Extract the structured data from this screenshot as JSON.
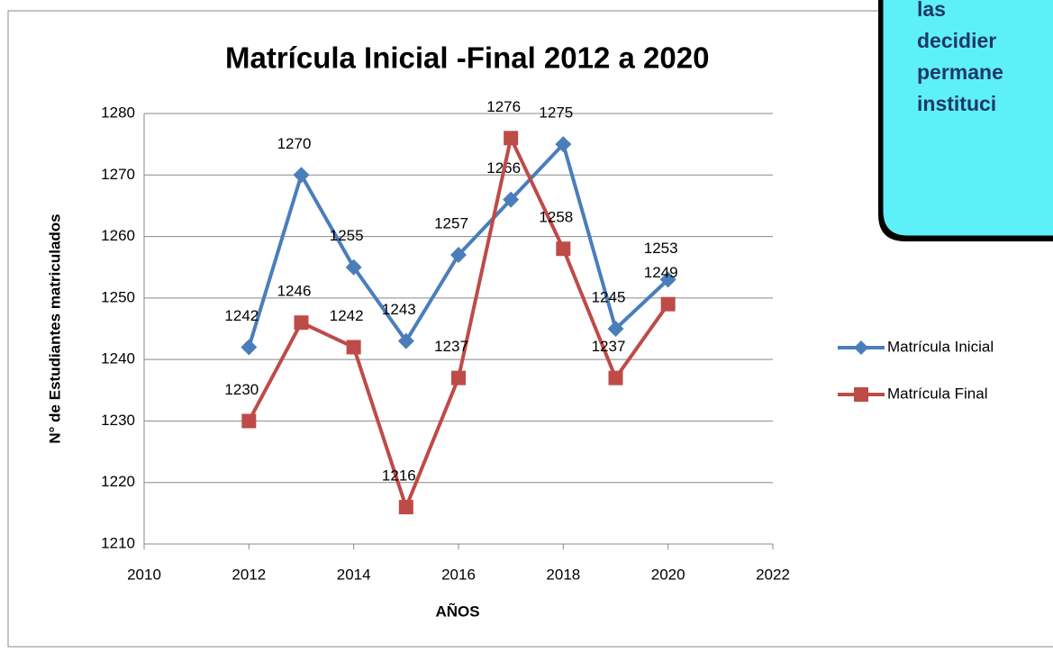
{
  "chart_data": {
    "type": "line",
    "title": "Matrícula Inicial -Final 2012 a 2020",
    "x_label": "AÑOS",
    "y_label": "N° de Estudiantes matriculados",
    "x": [
      2012,
      2013,
      2014,
      2015,
      2016,
      2017,
      2018,
      2019,
      2020
    ],
    "series": [
      {
        "name": "Matrícula Inicial",
        "color": "#4a7ebb",
        "marker": "diamond",
        "values": [
          1242,
          1270,
          1255,
          1243,
          1257,
          1266,
          1275,
          1245,
          1253
        ]
      },
      {
        "name": "Matrícula Final",
        "color": "#be4b48",
        "marker": "square",
        "values": [
          1230,
          1246,
          1242,
          1216,
          1237,
          1276,
          1258,
          1237,
          1249
        ]
      }
    ],
    "xlim": [
      2010,
      2022
    ],
    "xticks": [
      2010,
      2012,
      2014,
      2016,
      2018,
      2020,
      2022
    ],
    "ylim": [
      1210,
      1280
    ],
    "yticks": [
      1210,
      1220,
      1230,
      1240,
      1250,
      1260,
      1270,
      1280
    ],
    "grid": true,
    "legend": "right"
  },
  "callout": {
    "lines": [
      "las",
      "decidier",
      "permane",
      "instituci"
    ]
  }
}
